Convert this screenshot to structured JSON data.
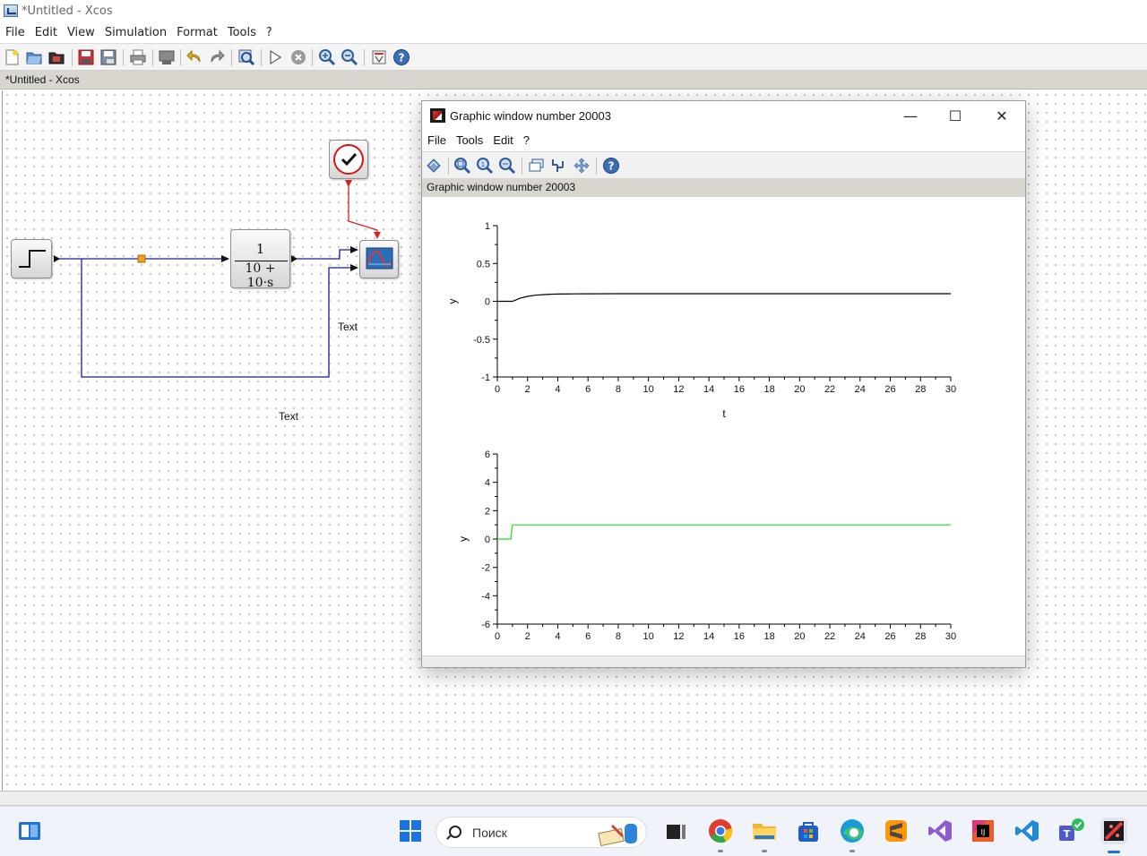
{
  "app": {
    "title": "*Untitled - Xcos",
    "tab_label": "*Untitled - Xcos"
  },
  "menu": [
    "File",
    "Edit",
    "View",
    "Simulation",
    "Format",
    "Tools",
    "?"
  ],
  "toolbar_icons": [
    "new-diagram-icon",
    "open-icon",
    "open-in-scilab-icon",
    "save-icon",
    "save-as-icon",
    "print-icon",
    "export-icon",
    "undo-icon",
    "redo-icon",
    "fit-diagram-icon",
    "start-icon",
    "stop-icon",
    "zoom-in-icon",
    "zoom-out-icon",
    "palette-browser-icon",
    "help-icon"
  ],
  "diagram": {
    "transfer_function": {
      "numerator": "1",
      "denominator": "10 + 10·s"
    },
    "text_labels": [
      "Text",
      "Text"
    ],
    "colors": {
      "link": "#1a1a9a",
      "event_link": "#e02020",
      "split_point": "#f0a020"
    }
  },
  "graphic_window": {
    "title": "Graphic window number 20003",
    "menu": [
      "File",
      "Tools",
      "Edit",
      "?"
    ],
    "bar_label": "Graphic window number 20003",
    "toolbar_icons": [
      "rotate-icon",
      "zoom-icon",
      "zoom-fit-icon",
      "unzoom-icon",
      "datatip-icon",
      "datatip-manager-icon",
      "pan-icon",
      "help-icon"
    ],
    "window_buttons": {
      "minimize": "—",
      "maximize": "☐",
      "close": "✕"
    }
  },
  "chart_data": [
    {
      "type": "line",
      "xlabel": "t",
      "ylabel": "y",
      "xlim": [
        0,
        30
      ],
      "ylim": [
        -1,
        1
      ],
      "xticks": [
        0,
        2,
        4,
        6,
        8,
        10,
        12,
        14,
        16,
        18,
        20,
        22,
        24,
        26,
        28,
        30
      ],
      "yticks": [
        -1,
        -0.5,
        0,
        0.5,
        1
      ],
      "ytick_labels": [
        "-1",
        "-0.5",
        "0",
        "0.5",
        "1"
      ],
      "grid": false,
      "series": [
        {
          "color": "#000000",
          "x": [
            0,
            0.5,
            1,
            1.5,
            2,
            2.5,
            3,
            3.5,
            4,
            5,
            6,
            8,
            10,
            15,
            20,
            25,
            30
          ],
          "y": [
            0,
            0,
            0,
            0.04,
            0.065,
            0.08,
            0.088,
            0.093,
            0.096,
            0.098,
            0.099,
            0.1,
            0.1,
            0.1,
            0.1,
            0.1,
            0.1
          ]
        }
      ]
    },
    {
      "type": "line",
      "xlabel": "",
      "ylabel": "y",
      "xlim": [
        0,
        30
      ],
      "ylim": [
        -6,
        6
      ],
      "xticks": [
        0,
        2,
        4,
        6,
        8,
        10,
        12,
        14,
        16,
        18,
        20,
        22,
        24,
        26,
        28,
        30
      ],
      "yticks": [
        -6,
        -4,
        -2,
        0,
        2,
        4,
        6
      ],
      "ytick_labels": [
        "-6",
        "-4",
        "-2",
        "0",
        "2",
        "4",
        "6"
      ],
      "grid": false,
      "series": [
        {
          "color": "#22dd22",
          "x": [
            0,
            0.9,
            0.9,
            1,
            30
          ],
          "y": [
            0,
            0,
            0.15,
            1,
            1
          ]
        }
      ]
    }
  ],
  "taskbar": {
    "search_placeholder": "Поиск",
    "apps": [
      "widgets-icon",
      "start-icon",
      "search-icon",
      "learning-app-icon",
      "task-view-icon",
      "chrome-icon",
      "file-explorer-icon",
      "store-icon",
      "edge-icon",
      "sublime-icon",
      "visual-studio-icon",
      "jetbrains-icon",
      "vscode-icon",
      "teams-icon",
      "scilab-icon"
    ]
  }
}
